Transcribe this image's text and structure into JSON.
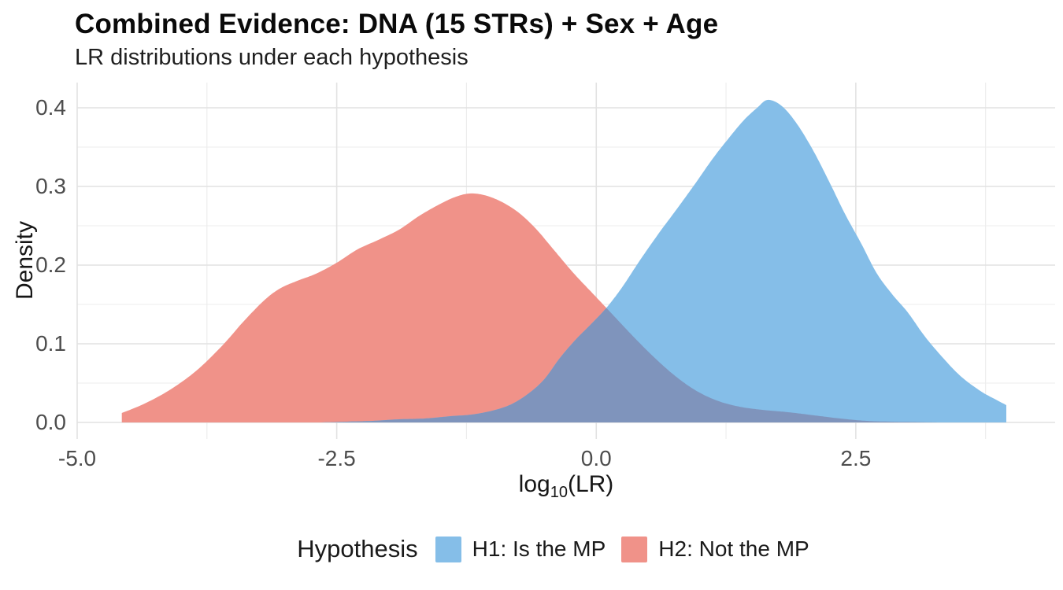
{
  "title": "Combined Evidence: DNA (15 STRs) + Sex + Age",
  "subtitle": "LR distributions under each hypothesis",
  "axes": {
    "x": {
      "label_pre": "log",
      "label_sub": "10",
      "label_post": "(LR)",
      "ticks": [
        {
          "label": "-5.0",
          "value": -5.0
        },
        {
          "label": "-2.5",
          "value": -2.5
        },
        {
          "label": "0.0",
          "value": 0.0
        },
        {
          "label": "2.5",
          "value": 2.5
        }
      ]
    },
    "y": {
      "label": "Density",
      "ticks": [
        {
          "label": "0.0",
          "value": 0.0
        },
        {
          "label": "0.1",
          "value": 0.1
        },
        {
          "label": "0.2",
          "value": 0.2
        },
        {
          "label": "0.3",
          "value": 0.3
        },
        {
          "label": "0.4",
          "value": 0.4
        }
      ]
    }
  },
  "legend": {
    "title": "Hypothesis",
    "items": [
      {
        "label": "H1: Is the MP",
        "color": "#85BEE8"
      },
      {
        "label": "H2: Not the MP",
        "color": "#F09289"
      }
    ]
  },
  "colors": {
    "h1_fill": "#85BEE8",
    "h2_fill": "#F09289",
    "overlap_fill": "#7F94BC",
    "grid_major": "#E2E2E2",
    "grid_minor": "#ECECEC",
    "tick_text": "#4D4D4D",
    "background": "#FFFFFF"
  },
  "chart_data": {
    "type": "area",
    "title": "Combined Evidence: DNA (15 STRs) + Sex + Age",
    "subtitle": "LR distributions under each hypothesis",
    "xlabel": "log10(LR)",
    "ylabel": "Density",
    "xlim": [
      -5.0,
      4.42
    ],
    "ylim": [
      -0.021,
      0.432
    ],
    "x_major_gridlines": [
      -5.0,
      -2.5,
      0.0,
      2.5
    ],
    "x_minor_gridlines": [
      -3.75,
      -1.25,
      1.25,
      3.75
    ],
    "y_major_gridlines": [
      0.0,
      0.1,
      0.2,
      0.3,
      0.4
    ],
    "y_minor_gridlines": [
      0.05,
      0.15,
      0.25,
      0.35
    ],
    "grid": "on",
    "legend_position": "bottom",
    "series": [
      {
        "name": "H1: Is the MP",
        "color": "#85BEE8",
        "peak": {
          "x": 1.65,
          "y": 0.41
        },
        "points": [
          [
            -2.65,
            0.0
          ],
          [
            -2.4,
            0.001
          ],
          [
            -2.15,
            0.002
          ],
          [
            -1.9,
            0.004
          ],
          [
            -1.65,
            0.005
          ],
          [
            -1.4,
            0.008
          ],
          [
            -1.2,
            0.01
          ],
          [
            -1.0,
            0.015
          ],
          [
            -0.82,
            0.023
          ],
          [
            -0.65,
            0.037
          ],
          [
            -0.5,
            0.055
          ],
          [
            -0.35,
            0.082
          ],
          [
            -0.2,
            0.105
          ],
          [
            -0.05,
            0.125
          ],
          [
            0.1,
            0.146
          ],
          [
            0.25,
            0.172
          ],
          [
            0.42,
            0.206
          ],
          [
            0.6,
            0.24
          ],
          [
            0.78,
            0.272
          ],
          [
            0.95,
            0.303
          ],
          [
            1.12,
            0.335
          ],
          [
            1.28,
            0.362
          ],
          [
            1.42,
            0.384
          ],
          [
            1.55,
            0.4
          ],
          [
            1.65,
            0.41
          ],
          [
            1.78,
            0.403
          ],
          [
            1.92,
            0.382
          ],
          [
            2.08,
            0.348
          ],
          [
            2.24,
            0.307
          ],
          [
            2.4,
            0.264
          ],
          [
            2.55,
            0.228
          ],
          [
            2.7,
            0.19
          ],
          [
            2.85,
            0.163
          ],
          [
            3.0,
            0.14
          ],
          [
            3.15,
            0.112
          ],
          [
            3.3,
            0.088
          ],
          [
            3.5,
            0.06
          ],
          [
            3.7,
            0.04
          ],
          [
            3.85,
            0.029
          ],
          [
            3.95,
            0.022
          ]
        ]
      },
      {
        "name": "H2: Not the MP",
        "color": "#F09289",
        "peak": {
          "x": -1.22,
          "y": 0.29
        },
        "points": [
          [
            -4.57,
            0.012
          ],
          [
            -4.35,
            0.024
          ],
          [
            -4.1,
            0.042
          ],
          [
            -3.85,
            0.066
          ],
          [
            -3.6,
            0.098
          ],
          [
            -3.4,
            0.128
          ],
          [
            -3.2,
            0.155
          ],
          [
            -3.05,
            0.17
          ],
          [
            -2.88,
            0.18
          ],
          [
            -2.7,
            0.189
          ],
          [
            -2.5,
            0.203
          ],
          [
            -2.3,
            0.22
          ],
          [
            -2.1,
            0.232
          ],
          [
            -1.9,
            0.245
          ],
          [
            -1.7,
            0.263
          ],
          [
            -1.5,
            0.278
          ],
          [
            -1.35,
            0.287
          ],
          [
            -1.22,
            0.291
          ],
          [
            -1.08,
            0.289
          ],
          [
            -0.92,
            0.281
          ],
          [
            -0.75,
            0.267
          ],
          [
            -0.58,
            0.246
          ],
          [
            -0.4,
            0.218
          ],
          [
            -0.22,
            0.19
          ],
          [
            -0.02,
            0.162
          ],
          [
            0.18,
            0.134
          ],
          [
            0.38,
            0.106
          ],
          [
            0.58,
            0.08
          ],
          [
            0.78,
            0.057
          ],
          [
            0.98,
            0.039
          ],
          [
            1.18,
            0.027
          ],
          [
            1.38,
            0.02
          ],
          [
            1.6,
            0.016
          ],
          [
            1.85,
            0.013
          ],
          [
            2.1,
            0.009
          ],
          [
            2.35,
            0.005
          ],
          [
            2.6,
            0.002
          ],
          [
            2.85,
            0.001
          ],
          [
            3.1,
            0.0005
          ],
          [
            3.3,
            0.0
          ]
        ]
      }
    ],
    "overlap_color": "#7F94BC"
  }
}
